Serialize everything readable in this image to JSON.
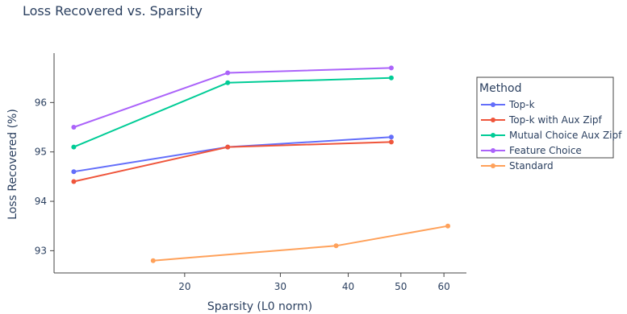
{
  "chart_data": {
    "type": "line",
    "title": "Loss Recovered vs. Sparsity",
    "xlabel": "Sparsity (L0 norm)",
    "ylabel": "Loss Recovered (%)",
    "x_scale": "log",
    "xlim": [
      11.5,
      66
    ],
    "ylim": [
      92.55,
      97.0
    ],
    "x_ticks": [
      20,
      30,
      40,
      50,
      60
    ],
    "y_ticks": [
      93,
      94,
      95,
      96
    ],
    "legend_title": "Method",
    "legend_position": "right",
    "series": [
      {
        "name": "Top-k",
        "color": "#636efa",
        "x": [
          12.5,
          24,
          48
        ],
        "y": [
          94.6,
          95.1,
          95.3
        ]
      },
      {
        "name": "Top-k with Aux Zipf",
        "color": "#ef553b",
        "x": [
          12.5,
          24,
          48
        ],
        "y": [
          94.4,
          95.1,
          95.2
        ]
      },
      {
        "name": "Mutual Choice Aux Zipf",
        "color": "#00cc96",
        "x": [
          12.5,
          24,
          48
        ],
        "y": [
          95.1,
          96.4,
          96.5
        ]
      },
      {
        "name": "Feature Choice",
        "color": "#ab63fa",
        "x": [
          12.5,
          24,
          48
        ],
        "y": [
          95.5,
          96.6,
          96.7
        ]
      },
      {
        "name": "Standard",
        "color": "#ffa15a",
        "x": [
          17.5,
          38,
          61
        ],
        "y": [
          92.8,
          93.1,
          93.5
        ]
      }
    ]
  }
}
